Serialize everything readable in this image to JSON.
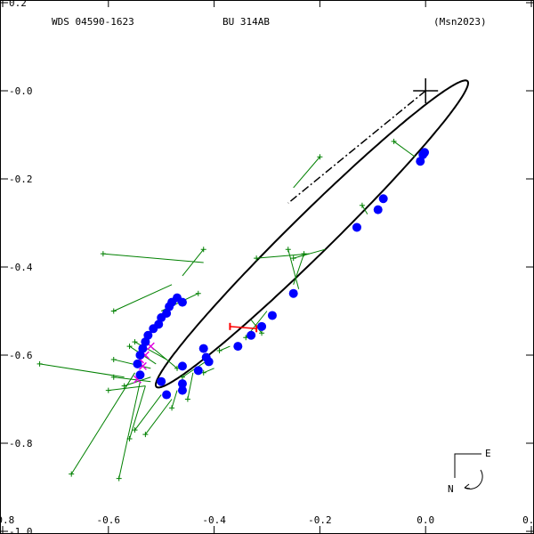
{
  "header": {
    "left": "WDS 04590-1623",
    "center": "BU  314AB",
    "right": "(Msn2023)"
  },
  "compass": {
    "east": "E",
    "north": "N"
  },
  "chart_data": {
    "type": "scatter",
    "title": "",
    "xlim": [
      -0.8,
      0.2
    ],
    "ylim": [
      -1.0,
      0.2
    ],
    "x_ticks": [
      -0.8,
      -0.6,
      -0.4,
      -0.2,
      0.0,
      0.2
    ],
    "x_tick_labels": [
      "-0.8",
      "-0.6",
      "-0.4",
      "-0.2",
      "0.0",
      "0.2"
    ],
    "y_ticks": [
      0.2,
      0.0,
      -0.2,
      -0.4,
      -0.6,
      -0.8,
      -1.0
    ],
    "y_tick_labels": [
      "0.2",
      "-0.0",
      "-0.2",
      "-0.4",
      "-0.6",
      "-0.8",
      "-1.0"
    ],
    "primary": [
      0.0,
      0.0
    ],
    "orbit": {
      "center": [
        -0.215,
        -0.325
      ],
      "semi_major": 0.455,
      "semi_minor": 0.042,
      "angle_deg": 49.8
    },
    "line_of_nodes": [
      [
        0.0,
        0.0
      ],
      [
        -0.26,
        -0.255
      ]
    ],
    "micrometer_observations": [
      {
        "obs": [
          -0.61,
          -0.37
        ],
        "calc": [
          -0.42,
          -0.39
        ]
      },
      {
        "obs": [
          -0.59,
          -0.5
        ],
        "calc": [
          -0.48,
          -0.44
        ]
      },
      {
        "obs": [
          -0.42,
          -0.36
        ],
        "calc": [
          -0.46,
          -0.42
        ]
      },
      {
        "obs": [
          -0.43,
          -0.46
        ],
        "calc": [
          -0.5,
          -0.5
        ]
      },
      {
        "obs": [
          -0.32,
          -0.38
        ],
        "calc": [
          -0.22,
          -0.37
        ]
      },
      {
        "obs": [
          -0.26,
          -0.36
        ],
        "calc": [
          -0.24,
          -0.45
        ]
      },
      {
        "obs": [
          -0.25,
          -0.38
        ],
        "calc": [
          -0.19,
          -0.36
        ]
      },
      {
        "obs": [
          -0.23,
          -0.37
        ],
        "calc": [
          -0.25,
          -0.44
        ]
      },
      {
        "obs": [
          -0.2,
          -0.15
        ],
        "calc": [
          -0.25,
          -0.22
        ]
      },
      {
        "obs": [
          -0.12,
          -0.26
        ],
        "calc": [
          -0.11,
          -0.28
        ]
      },
      {
        "obs": [
          -0.06,
          -0.115
        ],
        "calc": [
          -0.02,
          -0.15
        ]
      },
      {
        "obs": [
          -0.73,
          -0.62
        ],
        "calc": [
          -0.57,
          -0.65
        ]
      },
      {
        "obs": [
          -0.59,
          -0.61
        ],
        "calc": [
          -0.52,
          -0.63
        ]
      },
      {
        "obs": [
          -0.56,
          -0.58
        ],
        "calc": [
          -0.51,
          -0.62
        ]
      },
      {
        "obs": [
          -0.55,
          -0.57
        ],
        "calc": [
          -0.49,
          -0.61
        ]
      },
      {
        "obs": [
          -0.59,
          -0.65
        ],
        "calc": [
          -0.52,
          -0.66
        ]
      },
      {
        "obs": [
          -0.57,
          -0.67
        ],
        "calc": [
          -0.52,
          -0.65
        ]
      },
      {
        "obs": [
          -0.6,
          -0.68
        ],
        "calc": [
          -0.53,
          -0.67
        ]
      },
      {
        "obs": [
          -0.67,
          -0.87
        ],
        "calc": [
          -0.55,
          -0.64
        ]
      },
      {
        "obs": [
          -0.58,
          -0.88
        ],
        "calc": [
          -0.54,
          -0.66
        ]
      },
      {
        "obs": [
          -0.56,
          -0.79
        ],
        "calc": [
          -0.53,
          -0.67
        ]
      },
      {
        "obs": [
          -0.55,
          -0.77
        ],
        "calc": [
          -0.5,
          -0.69
        ]
      },
      {
        "obs": [
          -0.53,
          -0.78
        ],
        "calc": [
          -0.48,
          -0.7
        ]
      },
      {
        "obs": [
          -0.48,
          -0.72
        ],
        "calc": [
          -0.47,
          -0.68
        ]
      },
      {
        "obs": [
          -0.46,
          -0.65
        ],
        "calc": [
          -0.41,
          -0.61
        ]
      },
      {
        "obs": [
          -0.45,
          -0.7
        ],
        "calc": [
          -0.44,
          -0.64
        ]
      },
      {
        "obs": [
          -0.42,
          -0.64
        ],
        "calc": [
          -0.4,
          -0.63
        ]
      },
      {
        "obs": [
          -0.47,
          -0.63
        ],
        "calc": [
          -0.52,
          -0.58
        ]
      },
      {
        "obs": [
          -0.39,
          -0.59
        ],
        "calc": [
          -0.37,
          -0.58
        ]
      },
      {
        "obs": [
          -0.31,
          -0.55
        ],
        "calc": [
          -0.33,
          -0.52
        ]
      },
      {
        "obs": [
          -0.34,
          -0.56
        ],
        "calc": [
          -0.3,
          -0.5
        ]
      }
    ],
    "speckle_observations": [
      [
        -0.54,
        -0.61
      ],
      [
        -0.53,
        -0.6
      ],
      [
        -0.535,
        -0.625
      ],
      [
        -0.545,
        -0.655
      ],
      [
        -0.52,
        -0.58
      ]
    ],
    "interferometric_observations": [
      [
        -0.005,
        -0.145
      ],
      [
        -0.01,
        -0.16
      ],
      [
        -0.002,
        -0.14
      ],
      [
        -0.08,
        -0.245
      ],
      [
        -0.09,
        -0.27
      ],
      [
        -0.13,
        -0.31
      ],
      [
        -0.25,
        -0.46
      ],
      [
        -0.29,
        -0.51
      ],
      [
        -0.31,
        -0.535
      ],
      [
        -0.33,
        -0.555
      ],
      [
        -0.355,
        -0.58
      ],
      [
        -0.41,
        -0.615
      ],
      [
        -0.415,
        -0.605
      ],
      [
        -0.42,
        -0.585
      ],
      [
        -0.43,
        -0.635
      ],
      [
        -0.46,
        -0.625
      ],
      [
        -0.46,
        -0.665
      ],
      [
        -0.46,
        -0.68
      ],
      [
        -0.49,
        -0.69
      ],
      [
        -0.5,
        -0.66
      ],
      [
        -0.54,
        -0.645
      ],
      [
        -0.545,
        -0.62
      ],
      [
        -0.54,
        -0.6
      ],
      [
        -0.535,
        -0.585
      ],
      [
        -0.53,
        -0.57
      ],
      [
        -0.525,
        -0.555
      ],
      [
        -0.515,
        -0.54
      ],
      [
        -0.505,
        -0.53
      ],
      [
        -0.5,
        -0.515
      ],
      [
        -0.49,
        -0.505
      ],
      [
        -0.485,
        -0.49
      ],
      [
        -0.48,
        -0.48
      ],
      [
        -0.47,
        -0.47
      ],
      [
        -0.46,
        -0.48
      ]
    ],
    "anomaly_points": [
      [
        -0.37,
        -0.535
      ],
      [
        -0.32,
        -0.54
      ]
    ],
    "grid": false,
    "legend": "none"
  }
}
